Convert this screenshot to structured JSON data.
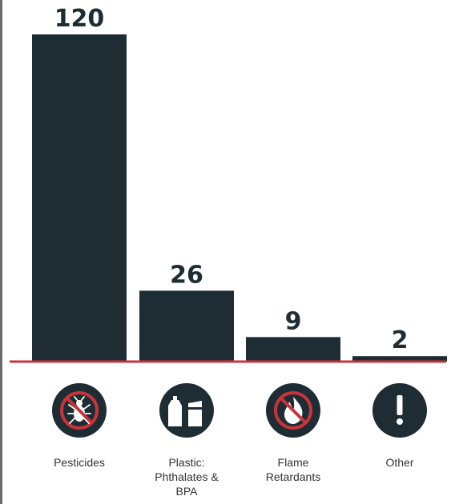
{
  "chart_data": {
    "type": "bar",
    "categories": [
      "Pesticides",
      "Plastic: Phthalates & BPA",
      "Flame Retardants",
      "Other"
    ],
    "category_label_lines": [
      [
        "Pesticides"
      ],
      [
        "Plastic:",
        "Phthalates &",
        "BPA"
      ],
      [
        "Flame",
        "Retardants"
      ],
      [
        "Other"
      ]
    ],
    "values": [
      120,
      26,
      9,
      2
    ],
    "value_labels": [
      "120",
      "26",
      "9",
      "2"
    ],
    "category_icons": [
      "no-bug-icon",
      "plastic-bottle-can-icon",
      "no-flame-icon",
      "exclamation-icon"
    ],
    "title": "",
    "xlabel": "",
    "ylabel": "",
    "ylim": [
      0,
      120
    ],
    "grid": false,
    "legend": "none"
  },
  "colors": {
    "bar": "#1d2d33",
    "baseline": "#c8343b",
    "icon_circle": "#1d2d33",
    "icon_slash": "#c8343b",
    "icon_glyph": "#ffffff",
    "label_text": "#333333"
  }
}
